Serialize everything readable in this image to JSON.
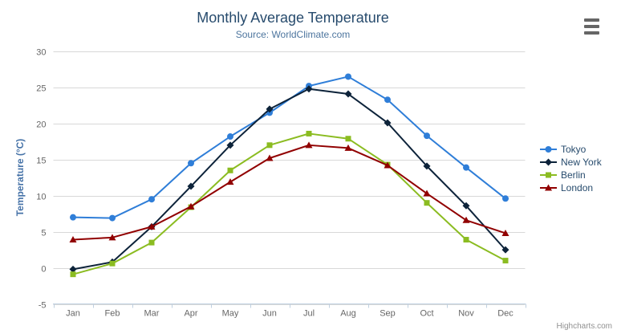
{
  "chart_data": {
    "type": "line",
    "title": "Monthly Average Temperature",
    "subtitle": "Source: WorldClimate.com",
    "xlabel": "",
    "ylabel": "Temperature (°C)",
    "categories": [
      "Jan",
      "Feb",
      "Mar",
      "Apr",
      "May",
      "Jun",
      "Jul",
      "Aug",
      "Sep",
      "Oct",
      "Nov",
      "Dec"
    ],
    "series": [
      {
        "name": "Tokyo",
        "color": "#2f7ed8",
        "symbol": "circle",
        "values": [
          7.0,
          6.9,
          9.5,
          14.5,
          18.2,
          21.5,
          25.2,
          26.5,
          23.3,
          18.3,
          13.9,
          9.6
        ]
      },
      {
        "name": "New York",
        "color": "#0d233a",
        "symbol": "diamond",
        "values": [
          -0.2,
          0.8,
          5.7,
          11.3,
          17.0,
          22.0,
          24.8,
          24.1,
          20.1,
          14.1,
          8.6,
          2.5
        ]
      },
      {
        "name": "Berlin",
        "color": "#8bbc21",
        "symbol": "square",
        "values": [
          -0.9,
          0.6,
          3.5,
          8.4,
          13.5,
          17.0,
          18.6,
          17.9,
          14.3,
          9.0,
          3.9,
          1.0
        ]
      },
      {
        "name": "London",
        "color": "#910000",
        "symbol": "triangle",
        "values": [
          3.9,
          4.2,
          5.7,
          8.5,
          11.9,
          15.2,
          17.0,
          16.6,
          14.2,
          10.3,
          6.6,
          4.8
        ]
      }
    ],
    "ylim": [
      -5,
      30
    ],
    "ytick_interval": 5,
    "grid": true,
    "legend_position": "right"
  },
  "colors": {
    "title": "#274b6d",
    "subtitle": "#4d759e",
    "axis_title": "#4572a7",
    "axis_label": "#666666",
    "grid_line": "#d8d8d8",
    "axis_line": "#c0d0e0",
    "credit": "#909090"
  },
  "credits": {
    "label": "Highcharts.com"
  }
}
